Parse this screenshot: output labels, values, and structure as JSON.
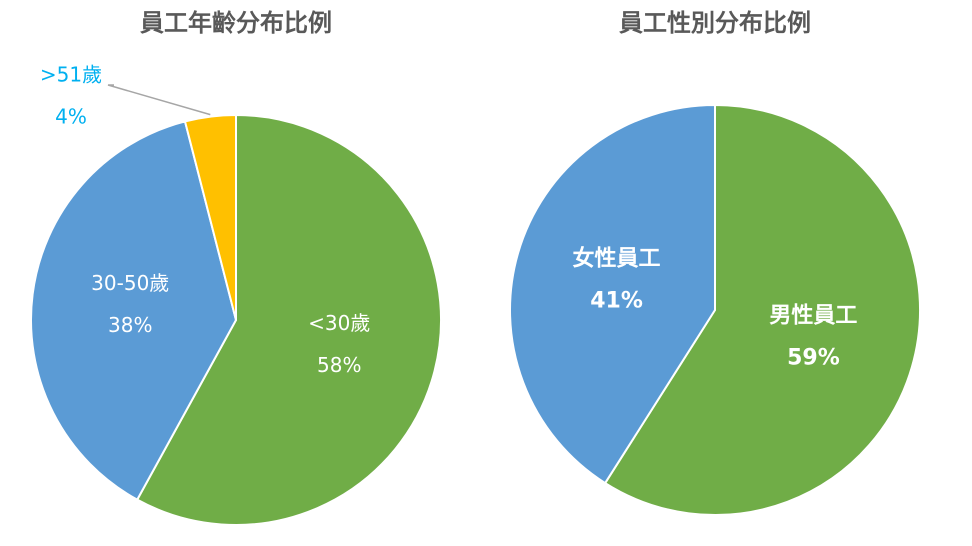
{
  "chart_data": [
    {
      "type": "pie",
      "title": "員工年齡分布比例",
      "categories": [
        "<30歲",
        "30-50歲",
        ">51歲"
      ],
      "values": [
        58,
        38,
        4
      ],
      "value_labels": [
        "58%",
        "38%",
        "4%"
      ],
      "colors": [
        "#70ad47",
        "#5b9bd5",
        "#ffc000"
      ]
    },
    {
      "type": "pie",
      "title": "員工性別分布比例",
      "categories": [
        "男性員工",
        "女性員工"
      ],
      "values": [
        59,
        41
      ],
      "value_labels": [
        "59%",
        "41%"
      ],
      "colors": [
        "#70ad47",
        "#5b9bd5"
      ]
    }
  ]
}
